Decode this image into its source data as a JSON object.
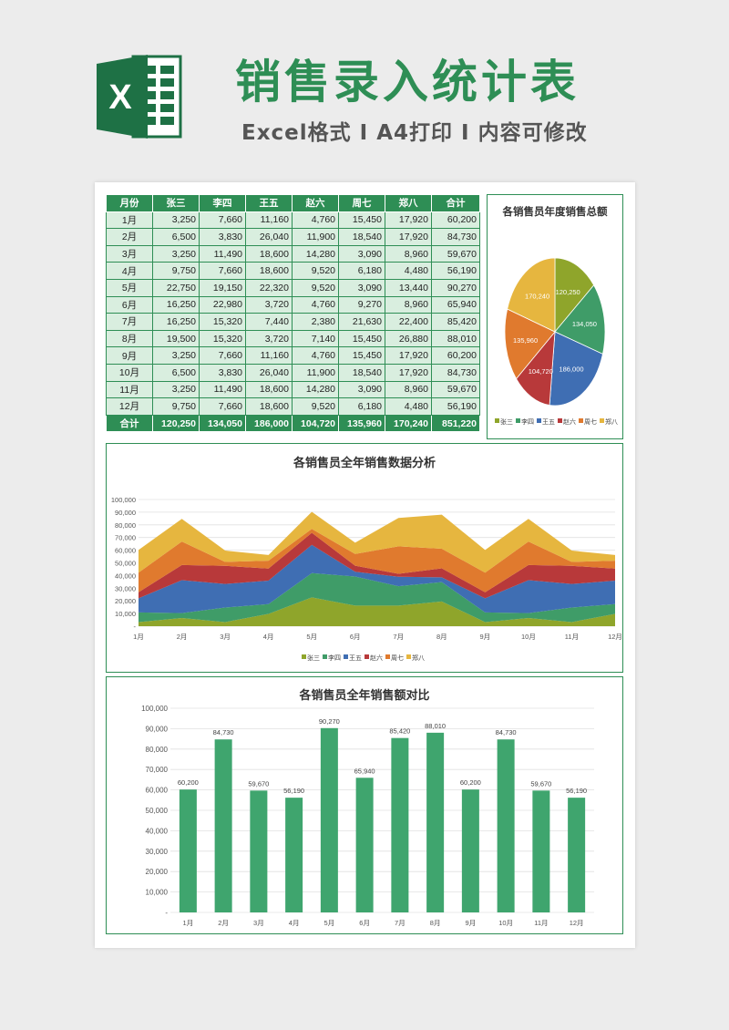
{
  "header": {
    "title": "销售录入统计表",
    "subtitle": "Excel格式 I A4打印 I 内容可修改"
  },
  "colors": {
    "brand": "#2e8e55",
    "series": [
      "#8fa52b",
      "#3f9c68",
      "#3f6eb3",
      "#b8393a",
      "#e07a2e",
      "#e6b63f"
    ]
  },
  "table": {
    "headers": [
      "月份",
      "张三",
      "李四",
      "王五",
      "赵六",
      "周七",
      "郑八",
      "合计"
    ],
    "rows": [
      [
        "1月",
        "3,250",
        "7,660",
        "11,160",
        "4,760",
        "15,450",
        "17,920",
        "60,200"
      ],
      [
        "2月",
        "6,500",
        "3,830",
        "26,040",
        "11,900",
        "18,540",
        "17,920",
        "84,730"
      ],
      [
        "3月",
        "3,250",
        "11,490",
        "18,600",
        "14,280",
        "3,090",
        "8,960",
        "59,670"
      ],
      [
        "4月",
        "9,750",
        "7,660",
        "18,600",
        "9,520",
        "6,180",
        "4,480",
        "56,190"
      ],
      [
        "5月",
        "22,750",
        "19,150",
        "22,320",
        "9,520",
        "3,090",
        "13,440",
        "90,270"
      ],
      [
        "6月",
        "16,250",
        "22,980",
        "3,720",
        "4,760",
        "9,270",
        "8,960",
        "65,940"
      ],
      [
        "7月",
        "16,250",
        "15,320",
        "7,440",
        "2,380",
        "21,630",
        "22,400",
        "85,420"
      ],
      [
        "8月",
        "19,500",
        "15,320",
        "3,720",
        "7,140",
        "15,450",
        "26,880",
        "88,010"
      ],
      [
        "9月",
        "3,250",
        "7,660",
        "11,160",
        "4,760",
        "15,450",
        "17,920",
        "60,200"
      ],
      [
        "10月",
        "6,500",
        "3,830",
        "26,040",
        "11,900",
        "18,540",
        "17,920",
        "84,730"
      ],
      [
        "11月",
        "3,250",
        "11,490",
        "18,600",
        "14,280",
        "3,090",
        "8,960",
        "59,670"
      ],
      [
        "12月",
        "9,750",
        "7,660",
        "18,600",
        "9,520",
        "6,180",
        "4,480",
        "56,190"
      ]
    ],
    "total": [
      "合计",
      "120,250",
      "134,050",
      "186,000",
      "104,720",
      "135,960",
      "170,240",
      "851,220"
    ]
  },
  "chart_data": [
    {
      "type": "pie",
      "title": "各销售员年度销售总额",
      "categories": [
        "张三",
        "李四",
        "王五",
        "赵六",
        "周七",
        "郑八"
      ],
      "values": [
        120250,
        134050,
        186000,
        104720,
        135960,
        170240
      ],
      "labels": [
        "120,250",
        "134,050",
        "186,000",
        "104,720",
        "135,960",
        "170,240"
      ],
      "legend": "bottom"
    },
    {
      "type": "area",
      "title": "各销售员全年销售数据分析",
      "categories": [
        "1月",
        "2月",
        "3月",
        "4月",
        "5月",
        "6月",
        "7月",
        "8月",
        "9月",
        "10月",
        "11月",
        "12月"
      ],
      "series": [
        {
          "name": "张三",
          "values": [
            3250,
            6500,
            3250,
            9750,
            22750,
            16250,
            16250,
            19500,
            3250,
            6500,
            3250,
            9750
          ]
        },
        {
          "name": "李四",
          "values": [
            7660,
            3830,
            11490,
            7660,
            19150,
            22980,
            15320,
            15320,
            7660,
            3830,
            11490,
            7660
          ]
        },
        {
          "name": "王五",
          "values": [
            11160,
            26040,
            18600,
            18600,
            22320,
            3720,
            7440,
            3720,
            11160,
            26040,
            18600,
            18600
          ]
        },
        {
          "name": "赵六",
          "values": [
            4760,
            11900,
            14280,
            9520,
            9520,
            4760,
            2380,
            7140,
            4760,
            11900,
            14280,
            9520
          ]
        },
        {
          "name": "周七",
          "values": [
            15450,
            18540,
            3090,
            6180,
            3090,
            9270,
            21630,
            15450,
            15450,
            18540,
            3090,
            6180
          ]
        },
        {
          "name": "郑八",
          "values": [
            17920,
            17920,
            8960,
            4480,
            13440,
            8960,
            22400,
            26880,
            17920,
            17920,
            8960,
            4480
          ]
        }
      ],
      "stacked": true,
      "yticks": [
        "-",
        "10,000",
        "20,000",
        "30,000",
        "40,000",
        "50,000",
        "60,000",
        "70,000",
        "80,000",
        "90,000",
        "100,000"
      ],
      "ylim": [
        0,
        100000
      ],
      "grid": true,
      "legend": "bottom"
    },
    {
      "type": "bar",
      "title": "各销售员全年销售额对比",
      "categories": [
        "1月",
        "2月",
        "3月",
        "4月",
        "5月",
        "6月",
        "7月",
        "8月",
        "9月",
        "10月",
        "11月",
        "12月"
      ],
      "values": [
        60200,
        84730,
        59670,
        56190,
        90270,
        65940,
        85420,
        88010,
        60200,
        84730,
        59670,
        56190
      ],
      "labels": [
        "60,200",
        "84,730",
        "59,670",
        "56,190",
        "90,270",
        "65,940",
        "85,420",
        "88,010",
        "60,200",
        "84,730",
        "59,670",
        "56,190"
      ],
      "yticks": [
        "-",
        "10,000",
        "20,000",
        "30,000",
        "40,000",
        "50,000",
        "60,000",
        "70,000",
        "80,000",
        "90,000",
        "100,000"
      ],
      "ylim": [
        0,
        100000
      ],
      "grid": true
    }
  ]
}
